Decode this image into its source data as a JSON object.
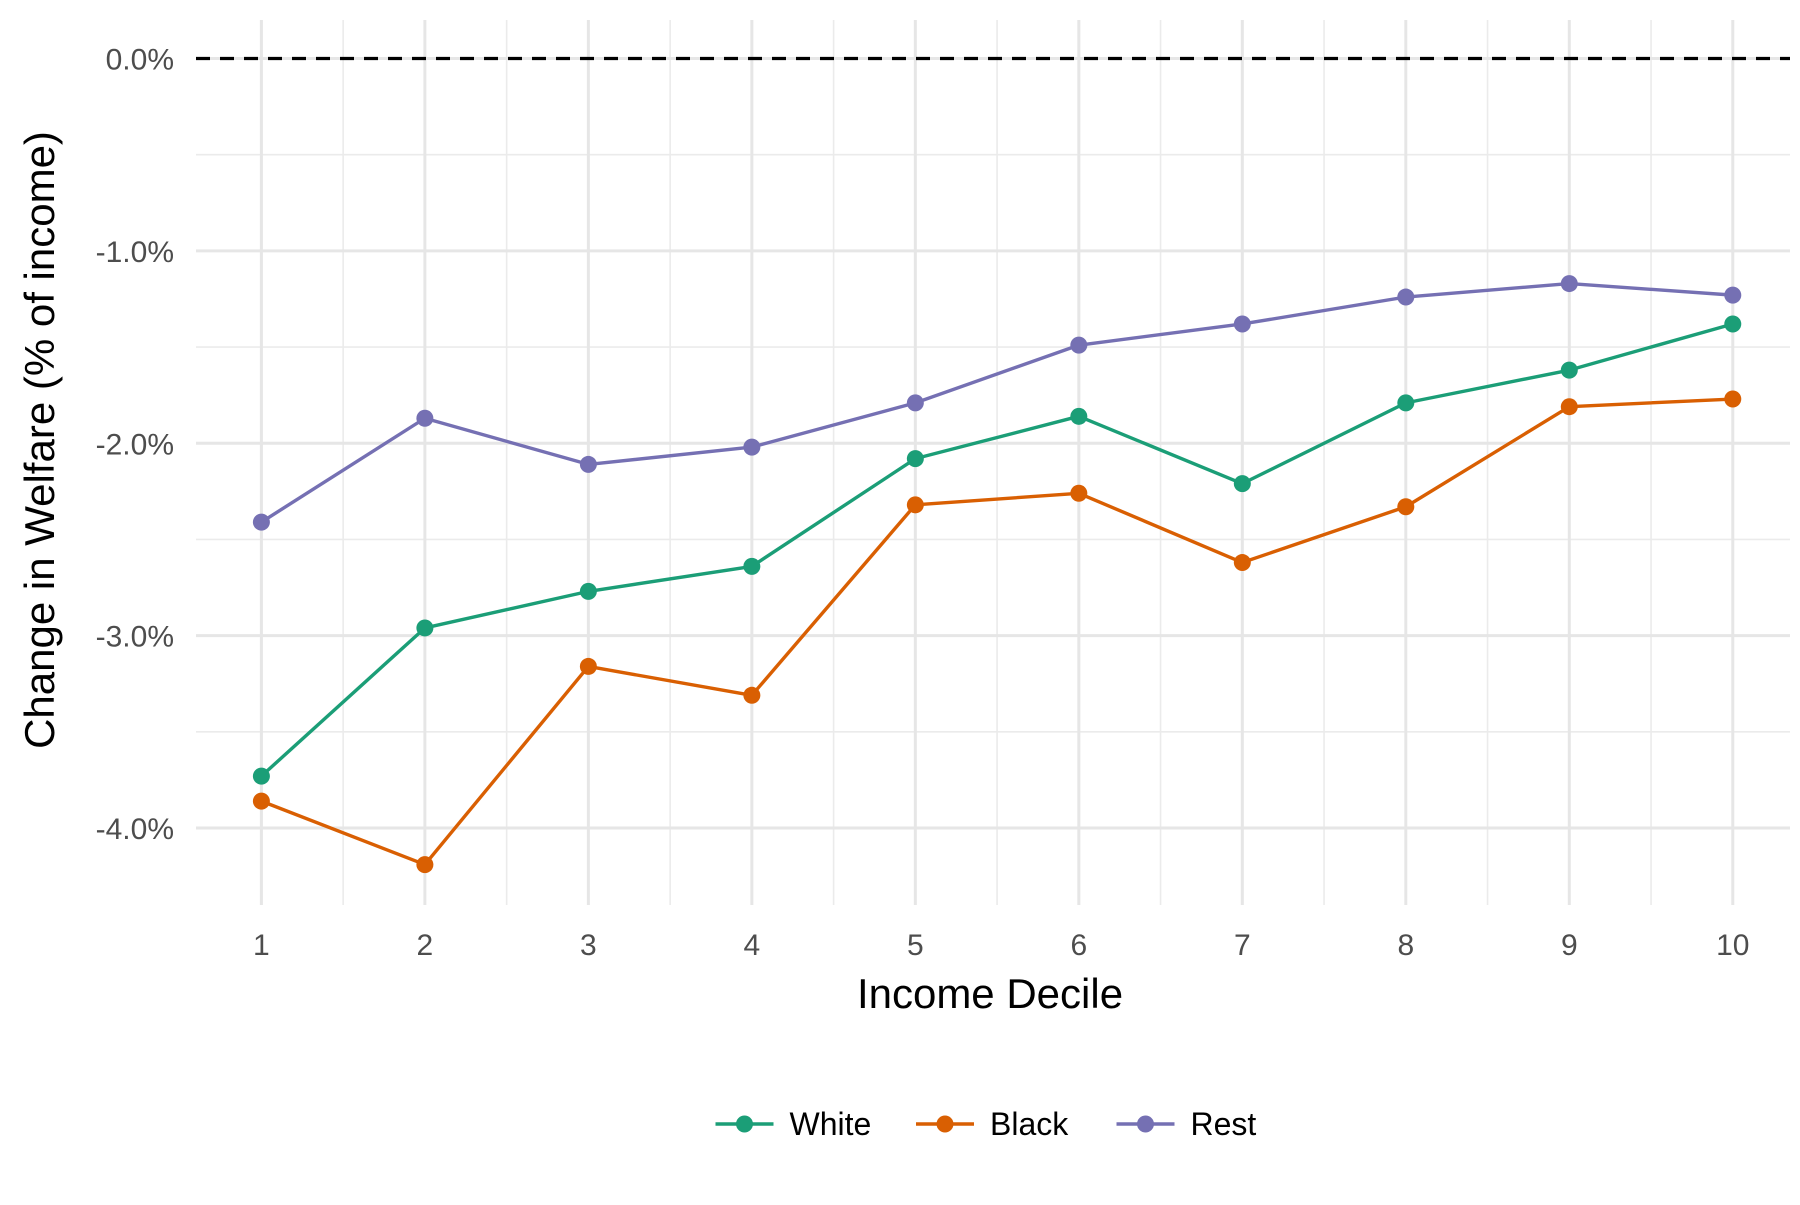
{
  "chart_data": {
    "type": "line",
    "title": "",
    "xlabel": "Income Decile",
    "ylabel": "Change in Welfare (% of income)",
    "x": [
      1,
      2,
      3,
      4,
      5,
      6,
      7,
      8,
      9,
      10
    ],
    "x_tick_labels": [
      "1",
      "2",
      "3",
      "4",
      "5",
      "6",
      "7",
      "8",
      "9",
      "10"
    ],
    "xlim": [
      0.6,
      10.35
    ],
    "ylim": [
      -4.4,
      0.2
    ],
    "y_ticks": [
      0.0,
      -1.0,
      -2.0,
      -3.0,
      -4.0
    ],
    "y_tick_labels": [
      "0.0%",
      "-1.0%",
      "-2.0%",
      "-3.0%",
      "-4.0%"
    ],
    "y_minor_ticks": [
      -0.5,
      -1.5,
      -2.5,
      -3.5
    ],
    "x_minor_ticks": [
      1.5,
      2.5,
      3.5,
      4.5,
      5.5,
      6.5,
      7.5,
      8.5,
      9.5
    ],
    "reference_line": {
      "y": 0.0,
      "style": "dashed",
      "color": "#000000"
    },
    "grid": true,
    "legend_position": "bottom",
    "series": [
      {
        "name": "White",
        "color": "#1b9e77",
        "values": [
          -3.73,
          -2.96,
          -2.77,
          -2.64,
          -2.08,
          -1.86,
          -2.21,
          -1.79,
          -1.62,
          -1.38
        ]
      },
      {
        "name": "Black",
        "color": "#d95f02",
        "values": [
          -3.86,
          -4.19,
          -3.16,
          -3.31,
          -2.32,
          -2.26,
          -2.62,
          -2.33,
          -1.81,
          -1.77
        ]
      },
      {
        "name": "Rest",
        "color": "#7570b3",
        "values": [
          -2.41,
          -1.87,
          -2.11,
          -2.02,
          -1.79,
          -1.49,
          -1.38,
          -1.24,
          -1.17,
          -1.23
        ]
      }
    ]
  }
}
